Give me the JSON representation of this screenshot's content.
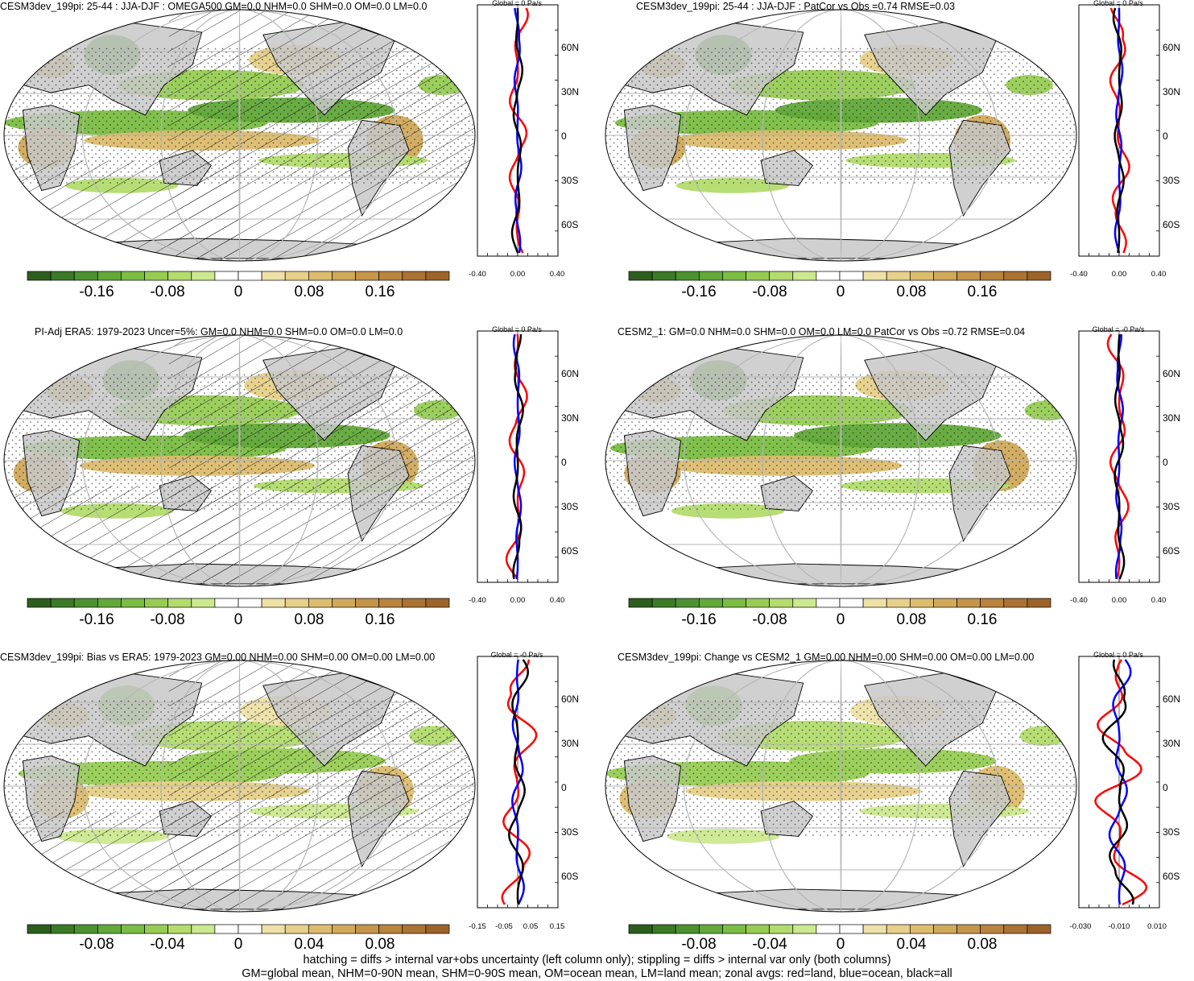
{
  "panels": [
    {
      "title": "CESM3dev_199pi: 25-44 : JJA-DJF : OMEGA500 GM=0.0 NHM=0.0 SHM=0.0 OM=0.0 LM=0.0",
      "zonal_title": "Global = 0 Pa/s",
      "colorbar_ticks": [
        "-0.16",
        "-0.08",
        "0",
        "0.08",
        "0.16"
      ],
      "lat_ticks": [
        "60N",
        "30N",
        "0",
        "30S",
        "60S"
      ],
      "x_ticks": [
        "-0.40",
        "0.00",
        "0.40"
      ],
      "hatching": true
    },
    {
      "title": "CESM3dev_199pi: 25-44 : JJA-DJF : PatCor vs Obs =0.74 RMSE=0.03",
      "zonal_title": "Global = 0 Pa/s",
      "colorbar_ticks": [
        "-0.16",
        "-0.08",
        "0",
        "0.08",
        "0.16"
      ],
      "lat_ticks": [
        "60N",
        "30N",
        "0",
        "30S",
        "60S"
      ],
      "x_ticks": [
        "-0.40",
        "0.00",
        "0.40"
      ],
      "hatching": false
    },
    {
      "title": "PI-Adj ERA5: 1979-2023 Uncer=5%: GM=0.0 NHM=0.0 SHM=0.0 OM=0.0 LM=0.0",
      "zonal_title": "Global = 0 Pa/s",
      "colorbar_ticks": [
        "-0.16",
        "-0.08",
        "0",
        "0.08",
        "0.16"
      ],
      "lat_ticks": [
        "60N",
        "30N",
        "0",
        "30S",
        "60S"
      ],
      "x_ticks": [
        "-0.40",
        "0.00",
        "0.40"
      ],
      "hatching": true
    },
    {
      "title": "CESM2_1: GM=0.0 NHM=0.0 SHM=0.0 OM=0.0 LM=0.0 PatCor vs Obs =0.72 RMSE=0.04",
      "zonal_title": "Global = -0 Pa/s",
      "colorbar_ticks": [
        "-0.16",
        "-0.08",
        "0",
        "0.08",
        "0.16"
      ],
      "lat_ticks": [
        "60N",
        "30N",
        "0",
        "30S",
        "60S"
      ],
      "x_ticks": [
        "-0.40",
        "0.00",
        "0.40"
      ],
      "hatching": false
    },
    {
      "title": "CESM3dev_199pi: Bias vs ERA5: 1979-2023 GM=0.00 NHM=0.00 SHM=0.00 OM=0.00 LM=0.00",
      "zonal_title": "Global = -0 Pa/s",
      "colorbar_ticks": [
        "-0.08",
        "-0.04",
        "0",
        "0.04",
        "0.08"
      ],
      "lat_ticks": [
        "60N",
        "30N",
        "0",
        "30S",
        "60S"
      ],
      "x_ticks": [
        "-0.15",
        "-0.05",
        "0.05",
        "0.15"
      ],
      "hatching": true
    },
    {
      "title": "CESM3dev_199pi: Change vs CESM2_1 GM=0.00 NHM=0.00 SHM=0.00 OM=0.00 LM=0.00",
      "zonal_title": "Global = 0 Pa/s",
      "colorbar_ticks": [
        "-0.08",
        "-0.04",
        "0",
        "0.04",
        "0.08"
      ],
      "lat_ticks": [
        "60N",
        "30N",
        "0",
        "30S",
        "60S"
      ],
      "x_ticks": [
        "-0.030",
        "-0.010",
        "0.010"
      ],
      "hatching": false
    }
  ],
  "colors": {
    "land": "#c8c8c8",
    "neg_ramp": [
      "#2e5e1e",
      "#3b7a26",
      "#4c9230",
      "#62a83a",
      "#7bbd44",
      "#97cc54",
      "#b3db6e",
      "#cce890",
      "#e2f2b8"
    ],
    "pos_ramp": [
      "#f6efcb",
      "#eee1a8",
      "#e6d08a",
      "#dcbc6e",
      "#d0a95b",
      "#c4954a",
      "#b8843e",
      "#ab7334",
      "#9c642a"
    ],
    "zonal_land": "#ff0000",
    "zonal_ocean": "#0000ff",
    "zonal_all": "#000000"
  },
  "footer": [
    "hatching = diffs > internal var+obs uncertainty (left column only); stippling = diffs > internal var only (both columns)",
    "GM=global mean, NHM=0-90N mean, SHM=0-90S mean, OM=ocean mean, LM=land mean; zonal avgs: red=land, blue=ocean, black=all"
  ]
}
